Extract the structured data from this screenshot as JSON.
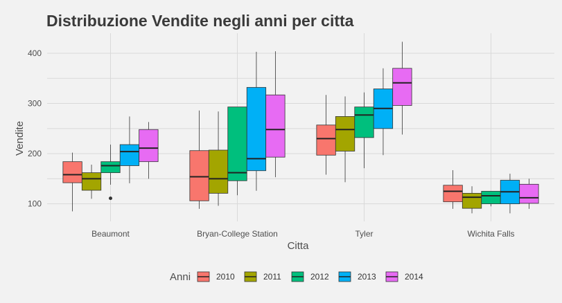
{
  "chart_data": {
    "type": "boxplot",
    "title": "Distribuzione Vendite negli anni per citta",
    "xlabel": "Citta",
    "ylabel": "Vendite",
    "ylim": [
      65,
      440
    ],
    "yticks": [
      100,
      200,
      300,
      400
    ],
    "categories": [
      "Beaumont",
      "Bryan-College Station",
      "Tyler",
      "Wichita Falls"
    ],
    "legend": {
      "title": "Anni",
      "position": "bottom"
    },
    "grid": true,
    "series": [
      {
        "name": "2010",
        "color": "#F8766D",
        "boxes": [
          {
            "min": 85,
            "q1": 142,
            "median": 158,
            "q3": 184,
            "max": 202,
            "outliers": []
          },
          {
            "min": 90,
            "q1": 106,
            "median": 154,
            "q3": 206,
            "max": 286,
            "outliers": []
          },
          {
            "min": 158,
            "q1": 197,
            "median": 230,
            "q3": 257,
            "max": 317,
            "outliers": []
          },
          {
            "min": 90,
            "q1": 104,
            "median": 125,
            "q3": 137,
            "max": 167,
            "outliers": []
          }
        ]
      },
      {
        "name": "2011",
        "color": "#A3A500",
        "boxes": [
          {
            "min": 110,
            "q1": 127,
            "median": 150,
            "q3": 162,
            "max": 178,
            "outliers": []
          },
          {
            "min": 96,
            "q1": 121,
            "median": 150,
            "q3": 207,
            "max": 284,
            "outliers": []
          },
          {
            "min": 143,
            "q1": 205,
            "median": 248,
            "q3": 274,
            "max": 314,
            "outliers": []
          },
          {
            "min": 81,
            "q1": 91,
            "median": 113,
            "q3": 121,
            "max": 135,
            "outliers": []
          }
        ]
      },
      {
        "name": "2012",
        "color": "#00BF7D",
        "boxes": [
          {
            "min": 138,
            "q1": 162,
            "median": 176,
            "q3": 184,
            "max": 218,
            "outliers": [
              111
            ]
          },
          {
            "min": 117,
            "q1": 146,
            "median": 162,
            "q3": 293,
            "max": 293,
            "outliers": []
          },
          {
            "min": 171,
            "q1": 232,
            "median": 277,
            "q3": 293,
            "max": 322,
            "outliers": []
          },
          {
            "min": 95,
            "q1": 100,
            "median": 116,
            "q3": 125,
            "max": 125,
            "outliers": []
          }
        ]
      },
      {
        "name": "2013",
        "color": "#00B0F6",
        "boxes": [
          {
            "min": 141,
            "q1": 176,
            "median": 204,
            "q3": 218,
            "max": 274,
            "outliers": []
          },
          {
            "min": 126,
            "q1": 166,
            "median": 190,
            "q3": 332,
            "max": 403,
            "outliers": []
          },
          {
            "min": 197,
            "q1": 250,
            "median": 290,
            "q3": 329,
            "max": 370,
            "outliers": []
          },
          {
            "min": 81,
            "q1": 100,
            "median": 124,
            "q3": 147,
            "max": 160,
            "outliers": []
          }
        ]
      },
      {
        "name": "2014",
        "color": "#E76BF3",
        "boxes": [
          {
            "min": 150,
            "q1": 184,
            "median": 211,
            "q3": 248,
            "max": 263,
            "outliers": []
          },
          {
            "min": 153,
            "q1": 193,
            "median": 248,
            "q3": 317,
            "max": 404,
            "outliers": []
          },
          {
            "min": 238,
            "q1": 296,
            "median": 341,
            "q3": 370,
            "max": 423,
            "outliers": []
          },
          {
            "min": 90,
            "q1": 101,
            "median": 112,
            "q3": 139,
            "max": 150,
            "outliers": []
          }
        ]
      }
    ]
  }
}
